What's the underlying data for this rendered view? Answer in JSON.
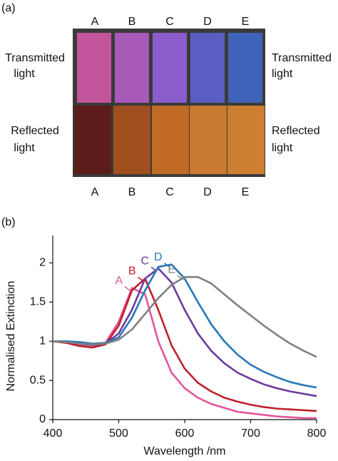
{
  "panel_a": {
    "label": "(a)",
    "top_labels": [
      "A",
      "B",
      "C",
      "D",
      "E"
    ],
    "bottom_labels": [
      "A",
      "B",
      "C",
      "D",
      "E"
    ],
    "left_labels": [
      [
        "Transmitted",
        "light"
      ],
      [
        "Reflected",
        "light"
      ]
    ],
    "right_labels": [
      [
        "Transmitted",
        "light"
      ],
      [
        "Reflected",
        "light"
      ]
    ]
  },
  "chart_data": {
    "type": "line",
    "panel_label": "(b)",
    "x_label": "Wavelength /nm",
    "y_label": "Normalised Extinction",
    "x": [
      400,
      420,
      440,
      460,
      480,
      500,
      520,
      540,
      560,
      580,
      600,
      620,
      640,
      660,
      680,
      700,
      720,
      740,
      760,
      780,
      800
    ],
    "xlim": [
      400,
      800
    ],
    "xticks": [
      400,
      500,
      600,
      700,
      800
    ],
    "ylim": [
      0,
      2.35
    ],
    "yticks": [
      0,
      0.5,
      1,
      1.5,
      2
    ],
    "series": [
      {
        "name": "A",
        "color": "#e4559b",
        "values": [
          1.0,
          0.99,
          0.95,
          0.92,
          0.98,
          1.25,
          1.68,
          1.6,
          1.0,
          0.6,
          0.4,
          0.28,
          0.2,
          0.15,
          0.1,
          0.08,
          0.06,
          0.04,
          0.03,
          0.02,
          0.02
        ]
      },
      {
        "name": "B",
        "color": "#c0202a",
        "values": [
          1.0,
          0.98,
          0.94,
          0.92,
          0.96,
          1.2,
          1.65,
          1.8,
          1.4,
          0.95,
          0.65,
          0.47,
          0.36,
          0.28,
          0.23,
          0.19,
          0.16,
          0.14,
          0.13,
          0.12,
          0.11
        ]
      },
      {
        "name": "C",
        "color": "#6a3a9e",
        "values": [
          1.0,
          0.99,
          0.97,
          0.95,
          0.97,
          1.1,
          1.4,
          1.8,
          1.93,
          1.75,
          1.4,
          1.1,
          0.88,
          0.72,
          0.6,
          0.52,
          0.45,
          0.4,
          0.36,
          0.33,
          0.3
        ]
      },
      {
        "name": "D",
        "color": "#2678b8",
        "values": [
          1.0,
          1.0,
          0.99,
          0.97,
          0.98,
          1.05,
          1.3,
          1.65,
          1.95,
          1.98,
          1.8,
          1.5,
          1.22,
          1.0,
          0.83,
          0.7,
          0.61,
          0.54,
          0.48,
          0.44,
          0.41
        ]
      },
      {
        "name": "E",
        "color": "#808080",
        "values": [
          1.0,
          0.99,
          0.97,
          0.96,
          0.97,
          1.02,
          1.15,
          1.35,
          1.55,
          1.72,
          1.82,
          1.82,
          1.74,
          1.6,
          1.46,
          1.33,
          1.2,
          1.08,
          0.97,
          0.88,
          0.8
        ]
      }
    ]
  }
}
